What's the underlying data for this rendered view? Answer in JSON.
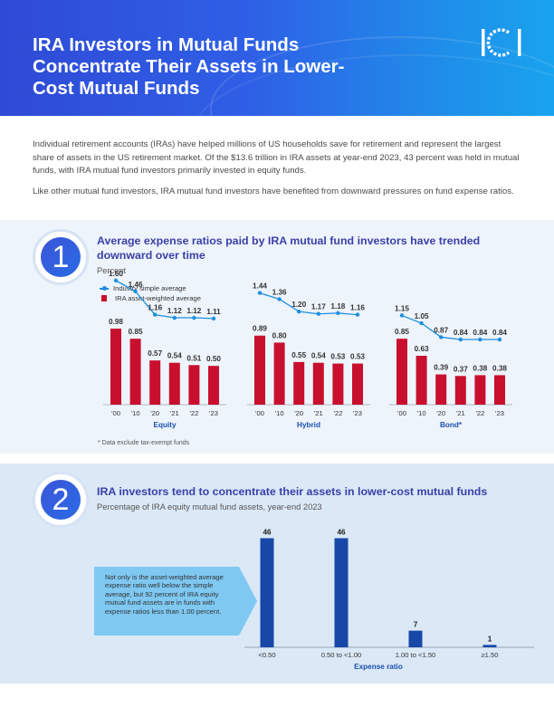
{
  "header": {
    "title": "IRA Investors in Mutual Funds Concentrate Their Assets in Lower-Cost Mutual Funds",
    "logo_text": "ICI",
    "gradient_start": "#2f4ad6",
    "gradient_end": "#19a3ee"
  },
  "intro": {
    "p1": "Individual retirement accounts (IRAs) have helped millions of US households save for retirement and represent the largest share of assets in the US retirement market. Of the $13.6 trillion in IRA assets at year-end 2023, 43 percent was held in mutual funds, with IRA mutual fund investors primarily invested in equity funds.",
    "p2": "Like other mutual fund investors, IRA mutual fund investors have benefited from downward pressures on fund expense ratios."
  },
  "section1": {
    "number": "1",
    "title": "Average expense ratios paid by IRA mutual fund investors have trended downward over time",
    "subtitle": "Percent",
    "legend_line": "Industry simple average",
    "legend_bar": "IRA asset-weighted average",
    "footnote": "* Data exclude tax-exempt funds"
  },
  "section2": {
    "number": "2",
    "title": "IRA investors tend to concentrate their assets in lower-cost mutual funds",
    "subtitle": "Percentage of IRA equity mutual fund assets, year-end 2023",
    "callout": "Not only is the asset-weighted average expense ratio well below the simple average, but 92 percent of IRA equity mutual fund assets are in funds with expense ratios less than 1.00 percent."
  },
  "colors": {
    "bar_red": "#c8102e",
    "line_blue": "#1e8fe0",
    "bar_navy": "#1748a8",
    "title_purple": "#3b3fa8",
    "callout_bg": "#7ec8f2"
  },
  "chart_data": [
    {
      "type": "bar",
      "title": "Average expense ratios paid by IRA mutual fund investors have trended downward over time",
      "ylabel": "Percent",
      "categories": [
        "'00",
        "'10",
        "'20",
        "'21",
        "'22",
        "'23"
      ],
      "panels": [
        {
          "name": "Equity",
          "series": [
            {
              "name": "Industry simple average",
              "kind": "line",
              "values": [
                1.6,
                1.46,
                1.16,
                1.12,
                1.12,
                1.11
              ]
            },
            {
              "name": "IRA asset-weighted average",
              "kind": "bar",
              "values": [
                0.98,
                0.85,
                0.57,
                0.54,
                0.51,
                0.5
              ]
            }
          ]
        },
        {
          "name": "Hybrid",
          "series": [
            {
              "name": "Industry simple average",
              "kind": "line",
              "values": [
                1.44,
                1.36,
                1.2,
                1.17,
                1.18,
                1.16
              ]
            },
            {
              "name": "IRA asset-weighted average",
              "kind": "bar",
              "values": [
                0.89,
                0.8,
                0.55,
                0.54,
                0.53,
                0.53
              ]
            }
          ]
        },
        {
          "name": "Bond*",
          "series": [
            {
              "name": "Industry simple average",
              "kind": "line",
              "values": [
                1.15,
                1.05,
                0.87,
                0.84,
                0.84,
                0.84
              ]
            },
            {
              "name": "IRA asset-weighted average",
              "kind": "bar",
              "values": [
                0.85,
                0.63,
                0.39,
                0.37,
                0.38,
                0.38
              ]
            }
          ]
        }
      ],
      "ylim": [
        0,
        1.8
      ],
      "grid": false
    },
    {
      "type": "bar",
      "title": "IRA investors tend to concentrate their assets in lower-cost mutual funds",
      "subtitle": "Percentage of IRA equity mutual fund assets, year-end 2023",
      "xlabel": "Expense ratio",
      "categories": [
        "<0.50",
        "0.50 to <1.00",
        "1.00 to <1.50",
        "≥1.50"
      ],
      "values": [
        46,
        46,
        7,
        1
      ],
      "ylim": [
        0,
        50
      ],
      "grid": false
    }
  ]
}
